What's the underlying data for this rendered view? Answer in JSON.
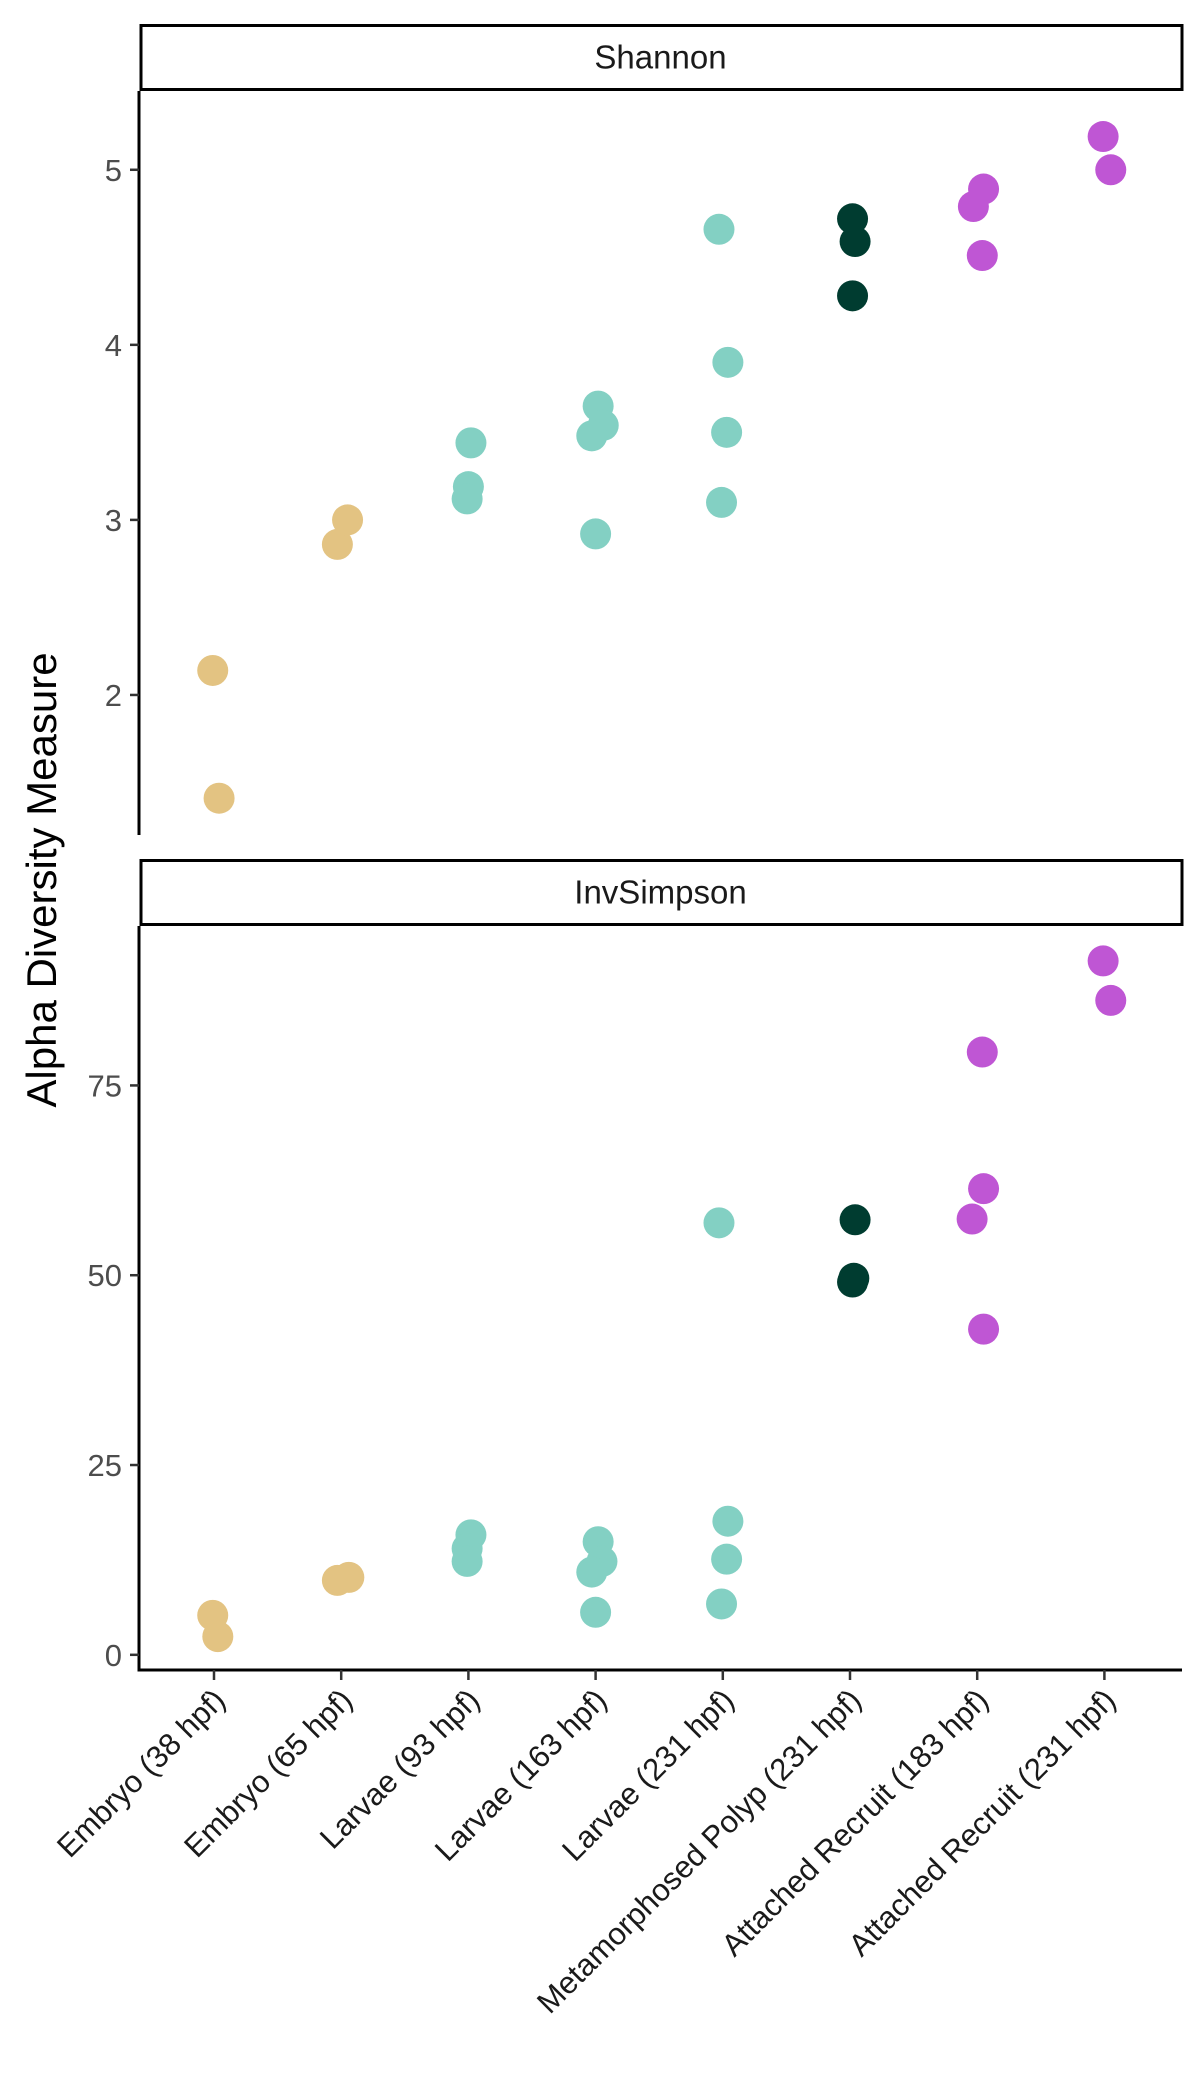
{
  "chart_data": {
    "type": "scatter",
    "ylabel": "Alpha Diversity Measure",
    "categories": [
      "Embryo (38 hpf)",
      "Embryo (65 hpf)",
      "Larvae (93 hpf)",
      "Larvae (163 hpf)",
      "Larvae (231 hpf)",
      "Metamorphosed Polyp (231 hpf)",
      "Attached Recruit (183 hpf)",
      "Attached Recruit (231 hpf)"
    ],
    "category_colors": [
      "#e3c382",
      "#e3c382",
      "#83d0c3",
      "#83d0c3",
      "#83d0c3",
      "#003c30",
      "#bf56d4",
      "#bf56d4"
    ],
    "legend": "none",
    "grid": false,
    "panels": [
      {
        "name": "Shannon",
        "ylim": [
          1.2,
          5.45
        ],
        "yticks": [
          2,
          3,
          4,
          5
        ],
        "points": [
          {
            "cat": 0,
            "y": 2.14,
            "jitter": -0.01
          },
          {
            "cat": 0,
            "y": 1.41,
            "jitter": 0.04
          },
          {
            "cat": 1,
            "y": 2.86,
            "jitter": -0.03
          },
          {
            "cat": 1,
            "y": 3.0,
            "jitter": 0.05
          },
          {
            "cat": 2,
            "y": 3.44,
            "jitter": 0.02
          },
          {
            "cat": 2,
            "y": 3.19,
            "jitter": 0.0
          },
          {
            "cat": 2,
            "y": 3.12,
            "jitter": -0.01
          },
          {
            "cat": 3,
            "y": 3.65,
            "jitter": 0.02
          },
          {
            "cat": 3,
            "y": 3.54,
            "jitter": 0.06
          },
          {
            "cat": 3,
            "y": 3.48,
            "jitter": -0.03
          },
          {
            "cat": 3,
            "y": 2.92,
            "jitter": 0.0
          },
          {
            "cat": 4,
            "y": 4.66,
            "jitter": -0.03
          },
          {
            "cat": 4,
            "y": 3.9,
            "jitter": 0.04
          },
          {
            "cat": 4,
            "y": 3.5,
            "jitter": 0.03
          },
          {
            "cat": 4,
            "y": 3.1,
            "jitter": -0.01
          },
          {
            "cat": 5,
            "y": 4.72,
            "jitter": 0.02
          },
          {
            "cat": 5,
            "y": 4.59,
            "jitter": 0.04
          },
          {
            "cat": 5,
            "y": 4.28,
            "jitter": 0.02
          },
          {
            "cat": 6,
            "y": 4.89,
            "jitter": 0.05
          },
          {
            "cat": 6,
            "y": 4.79,
            "jitter": -0.03
          },
          {
            "cat": 6,
            "y": 4.51,
            "jitter": 0.04
          },
          {
            "cat": 7,
            "y": 5.19,
            "jitter": -0.01
          },
          {
            "cat": 7,
            "y": 5.0,
            "jitter": 0.05
          }
        ]
      },
      {
        "name": "InvSimpson",
        "ylim": [
          -2,
          96
        ],
        "yticks": [
          0,
          25,
          50,
          75
        ],
        "points": [
          {
            "cat": 0,
            "y": 5.2,
            "jitter": -0.01
          },
          {
            "cat": 0,
            "y": 2.4,
            "jitter": 0.03
          },
          {
            "cat": 1,
            "y": 9.8,
            "jitter": -0.03
          },
          {
            "cat": 1,
            "y": 10.2,
            "jitter": 0.06
          },
          {
            "cat": 2,
            "y": 15.8,
            "jitter": 0.02
          },
          {
            "cat": 2,
            "y": 14.0,
            "jitter": -0.01
          },
          {
            "cat": 2,
            "y": 12.3,
            "jitter": -0.01
          },
          {
            "cat": 3,
            "y": 14.9,
            "jitter": 0.02
          },
          {
            "cat": 3,
            "y": 12.3,
            "jitter": 0.05
          },
          {
            "cat": 3,
            "y": 10.9,
            "jitter": -0.03
          },
          {
            "cat": 3,
            "y": 5.6,
            "jitter": 0.0
          },
          {
            "cat": 4,
            "y": 56.9,
            "jitter": -0.03
          },
          {
            "cat": 4,
            "y": 17.6,
            "jitter": 0.04
          },
          {
            "cat": 4,
            "y": 12.6,
            "jitter": 0.03
          },
          {
            "cat": 4,
            "y": 6.7,
            "jitter": -0.01
          },
          {
            "cat": 5,
            "y": 57.3,
            "jitter": 0.04
          },
          {
            "cat": 5,
            "y": 49.6,
            "jitter": 0.03
          },
          {
            "cat": 5,
            "y": 49.1,
            "jitter": 0.02
          },
          {
            "cat": 6,
            "y": 79.4,
            "jitter": 0.04
          },
          {
            "cat": 6,
            "y": 61.4,
            "jitter": 0.05
          },
          {
            "cat": 6,
            "y": 57.4,
            "jitter": -0.04
          },
          {
            "cat": 6,
            "y": 42.9,
            "jitter": 0.05
          },
          {
            "cat": 7,
            "y": 91.4,
            "jitter": -0.01
          },
          {
            "cat": 7,
            "y": 86.2,
            "jitter": 0.05
          }
        ]
      }
    ]
  }
}
